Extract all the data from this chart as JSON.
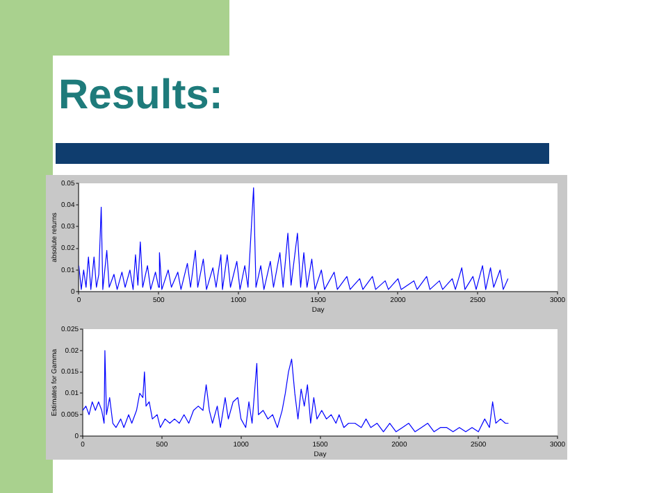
{
  "chart_data": [
    {
      "type": "line",
      "title": "Results:",
      "xlabel": "Day",
      "ylabel": "absolute returns",
      "xlim": [
        0,
        3000
      ],
      "xticks": [
        0,
        500,
        1000,
        1500,
        2000,
        2500,
        3000
      ],
      "ylim": [
        0,
        0.05
      ],
      "yticks": [
        0,
        0.01,
        0.02,
        0.03,
        0.04,
        0.05
      ],
      "grid": false,
      "legend": false,
      "marker": "none",
      "series": [
        {
          "color": "#0000ff",
          "x": [
            0,
            15,
            30,
            45,
            60,
            75,
            95,
            110,
            125,
            140,
            150,
            175,
            190,
            220,
            240,
            270,
            290,
            320,
            340,
            355,
            370,
            385,
            400,
            430,
            450,
            480,
            500,
            505,
            520,
            560,
            580,
            620,
            640,
            680,
            700,
            730,
            745,
            780,
            800,
            840,
            860,
            890,
            900,
            930,
            950,
            990,
            1010,
            1040,
            1060,
            1095,
            1110,
            1140,
            1160,
            1200,
            1220,
            1260,
            1280,
            1310,
            1330,
            1370,
            1390,
            1410,
            1430,
            1460,
            1480,
            1520,
            1540,
            1600,
            1620,
            1680,
            1700,
            1760,
            1780,
            1840,
            1860,
            1920,
            1940,
            2000,
            2020,
            2100,
            2120,
            2180,
            2200,
            2260,
            2280,
            2340,
            2360,
            2400,
            2420,
            2470,
            2490,
            2530,
            2550,
            2580,
            2600,
            2640,
            2660,
            2690
          ],
          "values": [
            0.012,
            0.001,
            0.01,
            0.002,
            0.016,
            0.001,
            0.016,
            0.002,
            0.008,
            0.039,
            0.001,
            0.019,
            0.002,
            0.008,
            0.001,
            0.009,
            0.002,
            0.01,
            0.001,
            0.017,
            0.003,
            0.023,
            0.002,
            0.012,
            0.001,
            0.009,
            0.002,
            0.018,
            0.001,
            0.01,
            0.002,
            0.009,
            0.001,
            0.013,
            0.002,
            0.019,
            0.002,
            0.015,
            0.001,
            0.011,
            0.002,
            0.017,
            0.001,
            0.017,
            0.002,
            0.014,
            0.001,
            0.012,
            0.002,
            0.048,
            0.002,
            0.012,
            0.001,
            0.014,
            0.002,
            0.018,
            0.002,
            0.027,
            0.003,
            0.027,
            0.002,
            0.018,
            0.002,
            0.015,
            0.001,
            0.01,
            0.001,
            0.009,
            0.001,
            0.007,
            0.001,
            0.006,
            0.001,
            0.007,
            0.001,
            0.005,
            0.001,
            0.006,
            0.001,
            0.005,
            0.001,
            0.007,
            0.001,
            0.005,
            0.001,
            0.006,
            0.001,
            0.011,
            0.001,
            0.007,
            0.001,
            0.012,
            0.001,
            0.011,
            0.002,
            0.01,
            0.001,
            0.006
          ]
        }
      ]
    },
    {
      "type": "line",
      "xlabel": "Day",
      "ylabel": "Estimates for Gamma",
      "xlim": [
        0,
        3000
      ],
      "xticks": [
        0,
        500,
        1000,
        1500,
        2000,
        2500,
        3000
      ],
      "ylim": [
        0,
        0.025
      ],
      "yticks": [
        0,
        0.005,
        0.01,
        0.015,
        0.02,
        0.025
      ],
      "grid": false,
      "legend": false,
      "marker": "none",
      "series": [
        {
          "color": "#0000ff",
          "x": [
            0,
            20,
            40,
            60,
            80,
            100,
            120,
            135,
            140,
            150,
            170,
            190,
            210,
            240,
            260,
            290,
            310,
            340,
            360,
            380,
            390,
            400,
            420,
            440,
            470,
            490,
            520,
            550,
            580,
            610,
            640,
            670,
            700,
            730,
            760,
            780,
            800,
            820,
            850,
            870,
            900,
            920,
            950,
            980,
            1000,
            1030,
            1050,
            1070,
            1100,
            1110,
            1140,
            1170,
            1200,
            1230,
            1260,
            1280,
            1300,
            1320,
            1340,
            1360,
            1380,
            1400,
            1420,
            1440,
            1460,
            1480,
            1510,
            1540,
            1570,
            1600,
            1620,
            1650,
            1680,
            1720,
            1760,
            1790,
            1820,
            1860,
            1900,
            1940,
            1980,
            2020,
            2060,
            2100,
            2140,
            2180,
            2220,
            2260,
            2300,
            2340,
            2380,
            2420,
            2460,
            2500,
            2540,
            2570,
            2590,
            2610,
            2640,
            2670,
            2690
          ],
          "values": [
            0.006,
            0.007,
            0.005,
            0.008,
            0.006,
            0.008,
            0.006,
            0.003,
            0.02,
            0.005,
            0.009,
            0.003,
            0.002,
            0.004,
            0.002,
            0.005,
            0.003,
            0.006,
            0.01,
            0.009,
            0.015,
            0.007,
            0.008,
            0.004,
            0.005,
            0.002,
            0.004,
            0.003,
            0.004,
            0.003,
            0.005,
            0.003,
            0.006,
            0.007,
            0.006,
            0.012,
            0.006,
            0.003,
            0.007,
            0.002,
            0.009,
            0.004,
            0.008,
            0.009,
            0.004,
            0.002,
            0.008,
            0.003,
            0.017,
            0.005,
            0.006,
            0.004,
            0.005,
            0.002,
            0.006,
            0.01,
            0.015,
            0.018,
            0.01,
            0.004,
            0.011,
            0.007,
            0.012,
            0.003,
            0.009,
            0.004,
            0.006,
            0.004,
            0.005,
            0.003,
            0.005,
            0.002,
            0.003,
            0.003,
            0.002,
            0.004,
            0.002,
            0.003,
            0.001,
            0.003,
            0.001,
            0.002,
            0.003,
            0.001,
            0.002,
            0.003,
            0.001,
            0.002,
            0.002,
            0.001,
            0.002,
            0.001,
            0.002,
            0.001,
            0.004,
            0.002,
            0.008,
            0.003,
            0.004,
            0.003,
            0.003
          ]
        }
      ]
    }
  ]
}
